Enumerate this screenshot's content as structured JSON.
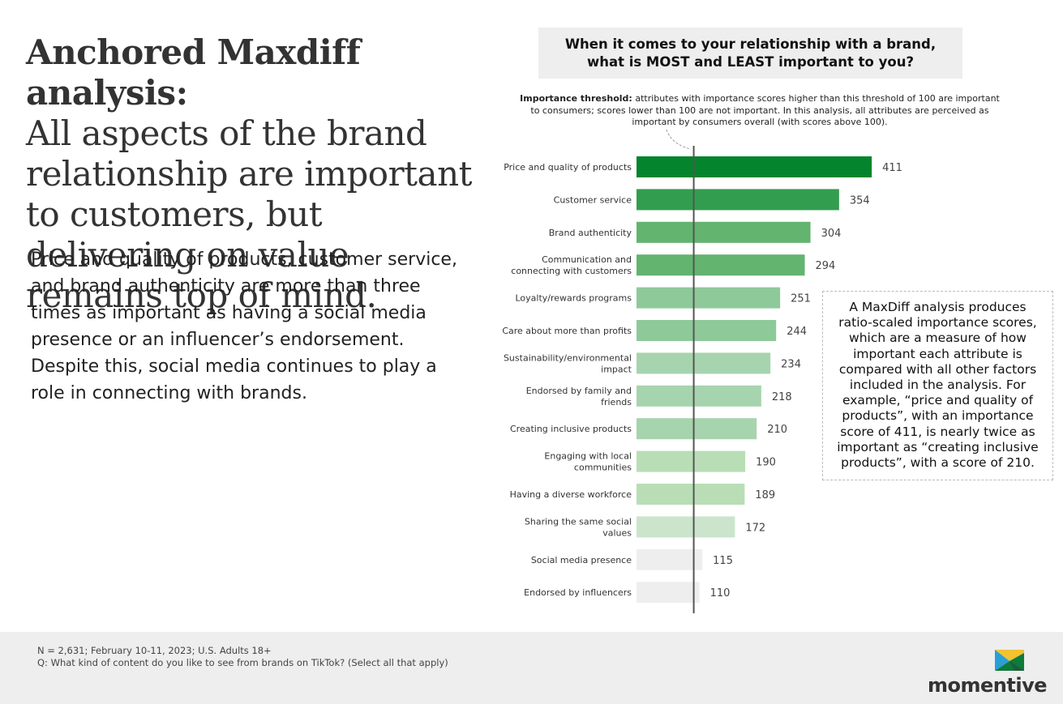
{
  "headline": {
    "bold": "Anchored Maxdiff analysis:",
    "rest": "All aspects of the brand relationship are important to customers, but delivering on value remains top of mind."
  },
  "body_text": "Price and quality of products, customer service, and brand authenticity are more than three times as important as having a social media presence or an influencer’s endorsement. Despite this, social media continues to play a role in connecting with brands.",
  "question": "When it comes to your relationship with a brand, what is MOST and LEAST important to you?",
  "threshold_note": {
    "label": "Importance threshold:",
    "text": " attributes with importance scores higher than this threshold of 100 are important to consumers; scores lower than 100 are not important. In this analysis, all attributes are perceived as important by consumers overall (with scores above 100)."
  },
  "note_box": "A MaxDiff analysis produces ratio-scaled importance scores, which are a measure of how important each attribute is compared with all other factors included in the analysis. For example, “price and quality of products”, with an importance score of 411, is nearly twice as important as “creating inclusive products”, with a score of 210.",
  "footer": {
    "line1": "N = 2,631; February 10-11, 2023; U.S. Adults 18+",
    "line2": "Q: What kind of content do you like to see from brands on TikTok? (Select all that apply)",
    "logo_text": "momentive"
  },
  "colors": {
    "bars": [
      "#04842c",
      "#339d4f",
      "#62b46f",
      "#62b46f",
      "#8ec99a",
      "#8ec99a",
      "#a6d4ae",
      "#a6d4ae",
      "#a6d4ae",
      "#b9deb6",
      "#b9deb6",
      "#cbe5cd",
      "#eeeeee",
      "#eeeeee"
    ],
    "threshold_line": "#555555"
  },
  "chart_data": {
    "type": "bar",
    "orientation": "horizontal",
    "title": "When it comes to your relationship with a brand, what is MOST and LEAST important to you?",
    "threshold": 100,
    "xlim": [
      0,
      430
    ],
    "categories": [
      [
        "Price and quality of products"
      ],
      [
        "Customer service"
      ],
      [
        "Brand authenticity"
      ],
      [
        "Communication and",
        "connecting with customers"
      ],
      [
        "Loyalty/rewards programs"
      ],
      [
        "Care about more than profits"
      ],
      [
        "Sustainability/environmental",
        "impact"
      ],
      [
        "Endorsed by family and",
        "friends"
      ],
      [
        "Creating inclusive products"
      ],
      [
        "Engaging with local",
        "communities"
      ],
      [
        "Having a diverse workforce"
      ],
      [
        "Sharing the same social",
        "values"
      ],
      [
        "Social media presence"
      ],
      [
        "Endorsed by influencers"
      ]
    ],
    "values": [
      411,
      354,
      304,
      294,
      251,
      244,
      234,
      218,
      210,
      190,
      189,
      172,
      115,
      110
    ]
  }
}
